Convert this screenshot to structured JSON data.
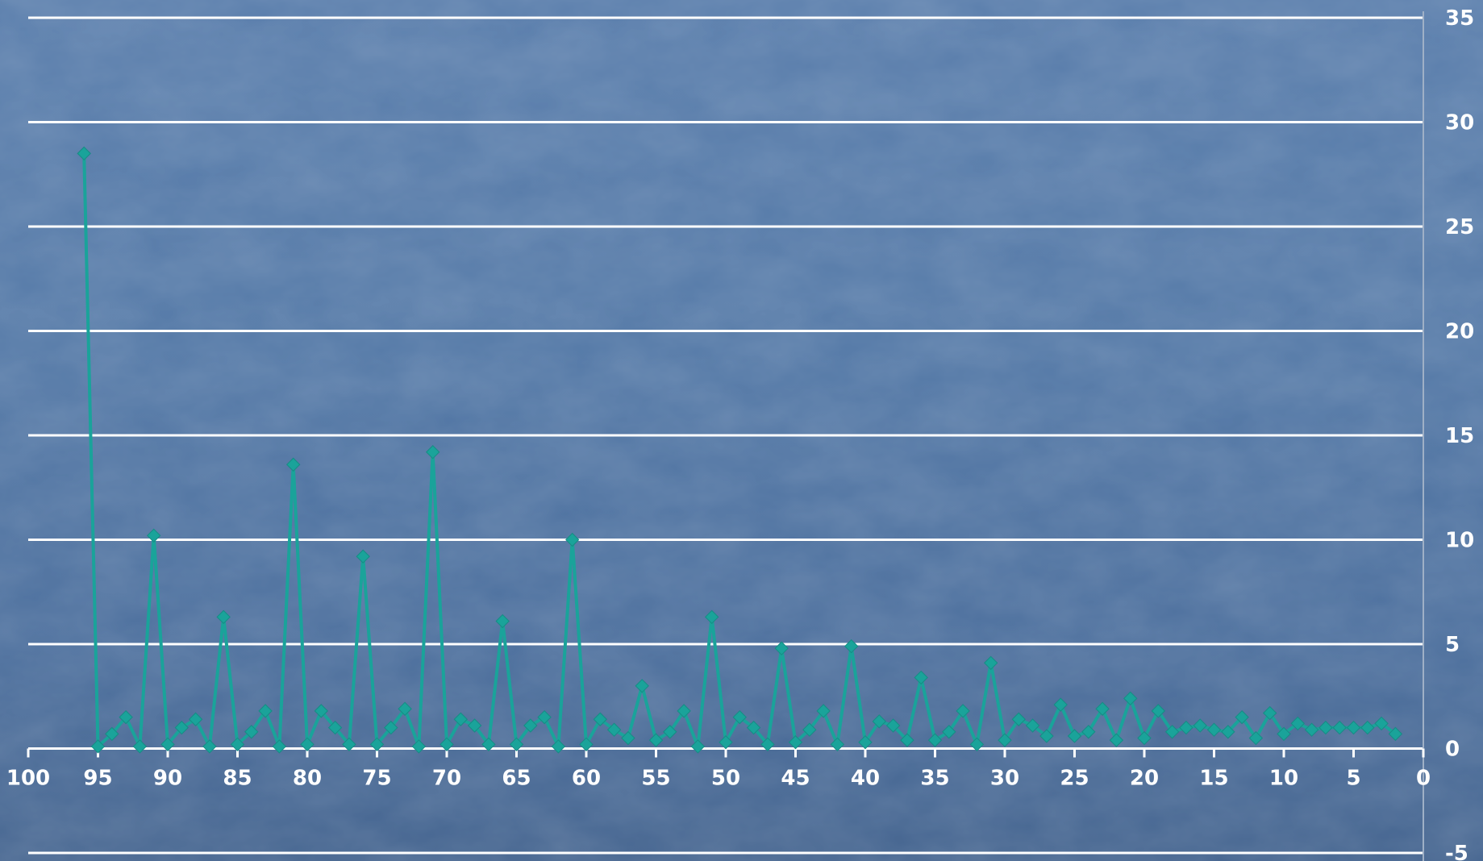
{
  "chart_data": {
    "type": "line",
    "xlim": [
      100,
      0
    ],
    "x_reversed": true,
    "ylim": [
      -5,
      35
    ],
    "x_ticks": [
      "100",
      "95",
      "90",
      "85",
      "80",
      "75",
      "70",
      "65",
      "60",
      "55",
      "50",
      "45",
      "40",
      "35",
      "30",
      "25",
      "20",
      "15",
      "10",
      "5",
      "0"
    ],
    "y_ticks": [
      "-5",
      "0",
      "5",
      "10",
      "15",
      "20",
      "25",
      "30",
      "35"
    ],
    "grid": true,
    "y_axis_position": "right",
    "colors": {
      "series": "#1aa39a",
      "grid": "#ffffff",
      "text": "#ffffff"
    },
    "series": [
      {
        "x": [
          96,
          95,
          94,
          93,
          92,
          91,
          90,
          89,
          88,
          87,
          86,
          85,
          84,
          83,
          82,
          81,
          80,
          79,
          78,
          77,
          76,
          75,
          74,
          73,
          72,
          71,
          70,
          69,
          68,
          67,
          66,
          65,
          64,
          63,
          62,
          61,
          60,
          59,
          58,
          57,
          56,
          55,
          54,
          53,
          52,
          51,
          50,
          49,
          48,
          47,
          46,
          45,
          44,
          43,
          42,
          41,
          40,
          39,
          38,
          37,
          36,
          35,
          34,
          33,
          32,
          31,
          30,
          29,
          28,
          27,
          26,
          25,
          24,
          23,
          22,
          21,
          20,
          19,
          18,
          17,
          16,
          15,
          14,
          13,
          12,
          11,
          10,
          9,
          8,
          7,
          6,
          5,
          4,
          3,
          2
        ],
        "y": [
          28.5,
          0.1,
          0.7,
          1.5,
          0.1,
          10.2,
          0.2,
          1.0,
          1.4,
          0.1,
          6.3,
          0.2,
          0.8,
          1.8,
          0.1,
          13.6,
          0.2,
          1.8,
          1.0,
          0.2,
          9.2,
          0.2,
          1.0,
          1.9,
          0.1,
          14.2,
          0.2,
          1.4,
          1.1,
          0.2,
          6.1,
          0.2,
          1.1,
          1.5,
          0.1,
          10.0,
          0.2,
          1.4,
          0.9,
          0.5,
          3.0,
          0.4,
          0.8,
          1.8,
          0.1,
          6.3,
          0.3,
          1.5,
          1.0,
          0.2,
          4.8,
          0.3,
          0.9,
          1.8,
          0.2,
          4.9,
          0.3,
          1.3,
          1.1,
          0.4,
          3.4,
          0.4,
          0.8,
          1.8,
          0.2,
          4.1,
          0.4,
          1.4,
          1.1,
          0.6,
          2.1,
          0.6,
          0.8,
          1.9,
          0.4,
          2.4,
          0.5,
          1.8,
          0.8,
          1.0,
          1.1,
          0.9,
          0.8,
          1.5,
          0.5,
          1.7,
          0.7,
          1.2,
          0.9,
          1.0,
          1.0,
          1.0,
          1.0,
          1.2,
          0.7
        ]
      }
    ]
  }
}
